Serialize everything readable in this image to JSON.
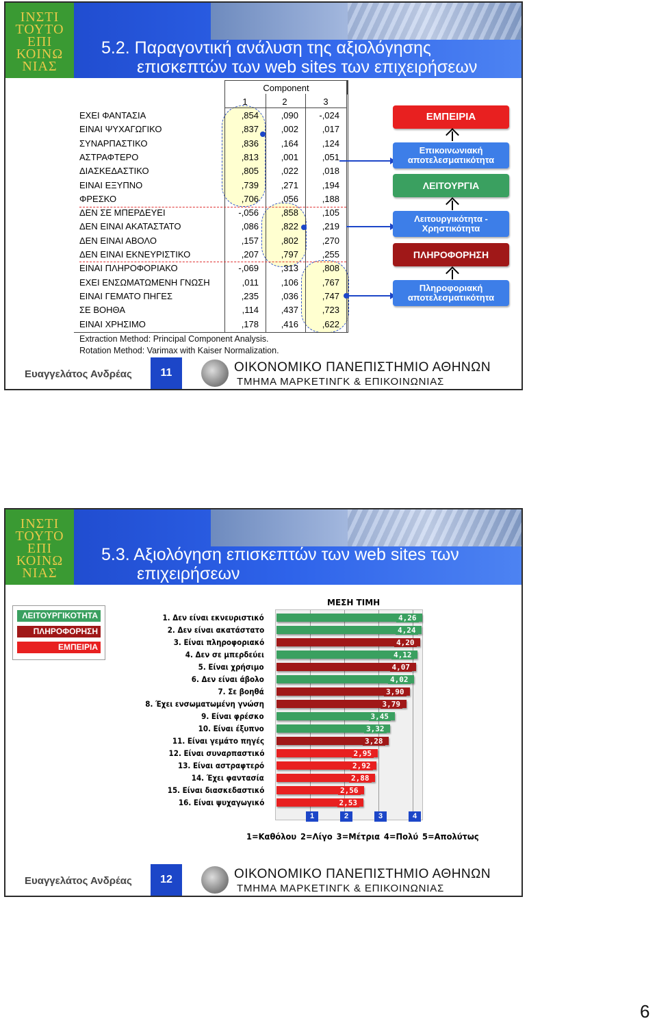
{
  "slide1": {
    "title_line1": "5.2. Παραγοντική ανάλυση της αξιολόγησης",
    "title_line2": "επισκεπτών των web sites των επιχειρήσεων",
    "component_header": "Component",
    "col_indices": [
      "1",
      "2",
      "3"
    ],
    "rows": [
      {
        "label": "ΕΧΕΙ ΦΑΝΤΑΣΙΑ",
        "v1": ",854",
        "v2": ",090",
        "v3": "-,024"
      },
      {
        "label": "ΕΙΝΑΙ ΨΥΧΑΓΩΓΙΚΟ",
        "v1": ",837",
        "v2": ",002",
        "v3": ",017"
      },
      {
        "label": "ΣΥΝΑΡΠΑΣΤΙΚΟ",
        "v1": ",836",
        "v2": ",164",
        "v3": ",124"
      },
      {
        "label": "ΑΣΤΡΑΦΤΕΡΟ",
        "v1": ",813",
        "v2": ",001",
        "v3": ",051"
      },
      {
        "label": "ΔΙΑΣΚΕΔΑΣΤΙΚΟ",
        "v1": ",805",
        "v2": ",022",
        "v3": ",018"
      },
      {
        "label": "ΕΙΝΑΙ ΕΞΥΠΝΟ",
        "v1": ",739",
        "v2": ",271",
        "v3": ",194"
      },
      {
        "label": "ΦΡΕΣΚΟ",
        "v1": ",706",
        "v2": ",056",
        "v3": ",188"
      },
      {
        "label": "ΔΕΝ ΣΕ ΜΠΕΡΔΕΥΕΙ",
        "v1": "-,056",
        "v2": ",858",
        "v3": ",105"
      },
      {
        "label": "ΔΕΝ ΕΙΝΑΙ ΑΚΑΤΑΣΤΑΤΟ",
        "v1": ",086",
        "v2": ",822",
        "v3": ",219"
      },
      {
        "label": "ΔΕΝ ΕΙΝΑΙ ΑΒΟΛΟ",
        "v1": ",157",
        "v2": ",802",
        "v3": ",270"
      },
      {
        "label": "ΔΕΝ ΕΙΝΑΙ ΕΚΝΕΥΡΙΣΤΙΚΟ",
        "v1": ",207",
        "v2": ",797",
        "v3": ",255"
      },
      {
        "label": "ΕΙΝΑΙ ΠΛΗΡΟΦΟΡΙΑΚΟ",
        "v1": "-,069",
        "v2": ",313",
        "v3": ",808"
      },
      {
        "label": "ΕΧΕΙ ΕΝΣΩΜΑΤΩΜΕΝΗ ΓΝΩΣΗ",
        "v1": ",011",
        "v2": ",106",
        "v3": ",767"
      },
      {
        "label": "ΕΙΝΑΙ ΓΕΜΑΤΟ ΠΗΓΕΣ",
        "v1": ",235",
        "v2": ",036",
        "v3": ",747"
      },
      {
        "label": "ΣΕ ΒΟΗΘΑ",
        "v1": ",114",
        "v2": ",437",
        "v3": ",723"
      },
      {
        "label": "ΕΙΝΑΙ ΧΡΗΣΙΜΟ",
        "v1": ",178",
        "v2": ",416",
        "v3": ",622"
      }
    ],
    "note1": "Extraction Method: Principal Component Analysis.",
    "note2": "Rotation Method: Varimax with Kaiser Normalization.",
    "boxes": {
      "b1": "ΕΜΠΕΙΡΙΑ",
      "b2": "Επικοινωνιακή αποτελεσματικότητα",
      "b3": "ΛΕΙΤΟΥΡΓΙΑ",
      "b4": "Λειτουργικότητα - Χρηστικότητα",
      "b5": "ΠΛΗΡΟΦΟΡΗΣΗ",
      "b6": "Πληροφοριακή αποτελεσματικότητα"
    },
    "footer_author": "Ευαγγελάτος Ανδρέας",
    "footer_num": "11"
  },
  "slide2": {
    "title_line1": "5.3. Αξιολόγηση επισκεπτών των web sites των",
    "title_line2": "επιχειρήσεων",
    "legend": [
      "ΛΕΙΤΟΥΡΓΙΚΟΤΗΤΑ",
      "ΠΛΗΡΟΦΟΡΗΣΗ",
      "ΕΜΠΕΙΡΙΑ"
    ],
    "footer_author": "Ευαγγελάτος Ανδρέας",
    "footer_num": "12",
    "scale_legend": "1=Καθόλου  2=Λίγο  3=Μέτρια  4=Πολύ  5=Απολύτως"
  },
  "footer_uni": "ΟΙΚΟΝΟΜΙΚΟ ΠΑΝΕΠΙΣΤΗΜΙΟ ΑΘΗΝΩΝ",
  "footer_dept": "ΤΜΗΜΑ ΜΑΡΚΕΤΙΝΓΚ & ΕΠΙΚΟΙΝΩΝΙΑΣ",
  "logo_lines": [
    "ΙΝΣΤΙ",
    "ΤΟΥΤΟ",
    "ΕΠΙ",
    "ΚΟΙΝΩ",
    "ΝΙΑΣ"
  ],
  "page_number": "6",
  "colors": {
    "green": "#3aa060",
    "dark_red": "#a01818",
    "red": "#e82020",
    "blue": "#1c46c8"
  },
  "chart_data": {
    "type": "bar",
    "title": "ΜΕΣΗ ΤΙΜΗ",
    "categories": [
      "1. Δεν είναι εκνευριστικό",
      "2. Δεν είναι ακατάστατο",
      "3. Είναι πληροφοριακό",
      "4. Δεν σε μπερδεύει",
      "5. Είναι χρήσιμο",
      "6. Δεν είναι άβολο",
      "7. Σε βοηθά",
      "8. Έχει ενσωματωμένη γνώση",
      "9. Είναι φρέσκο",
      "10. Είναι έξυπνο",
      "11. Είναι γεμάτο πηγές",
      "12. Είναι συναρπαστικό",
      "13. Είναι αστραφτερό",
      "14. Έχει φαντασία",
      "15. Είναι διασκεδαστικό",
      "16. Είναι ψυχαγωγικό"
    ],
    "values": [
      4.26,
      4.24,
      4.2,
      4.12,
      4.07,
      4.02,
      3.9,
      3.79,
      3.45,
      3.32,
      3.28,
      2.95,
      2.92,
      2.88,
      2.56,
      2.53
    ],
    "value_labels": [
      "4,26",
      "4,24",
      "4,20",
      "4,12",
      "4,07",
      "4,02",
      "3,90",
      "3,79",
      "3,45",
      "3,32",
      "3,28",
      "2,95",
      "2,92",
      "2,88",
      "2,56",
      "2,53"
    ],
    "bar_colors": [
      "#3aa060",
      "#3aa060",
      "#a01818",
      "#3aa060",
      "#a01818",
      "#3aa060",
      "#a01818",
      "#a01818",
      "#3aa060",
      "#3aa060",
      "#a01818",
      "#e82020",
      "#e82020",
      "#e82020",
      "#e82020",
      "#e82020"
    ],
    "x_ticks": [
      "1",
      "2",
      "3",
      "4"
    ],
    "xlim": [
      1,
      5
    ],
    "orientation": "horizontal"
  }
}
